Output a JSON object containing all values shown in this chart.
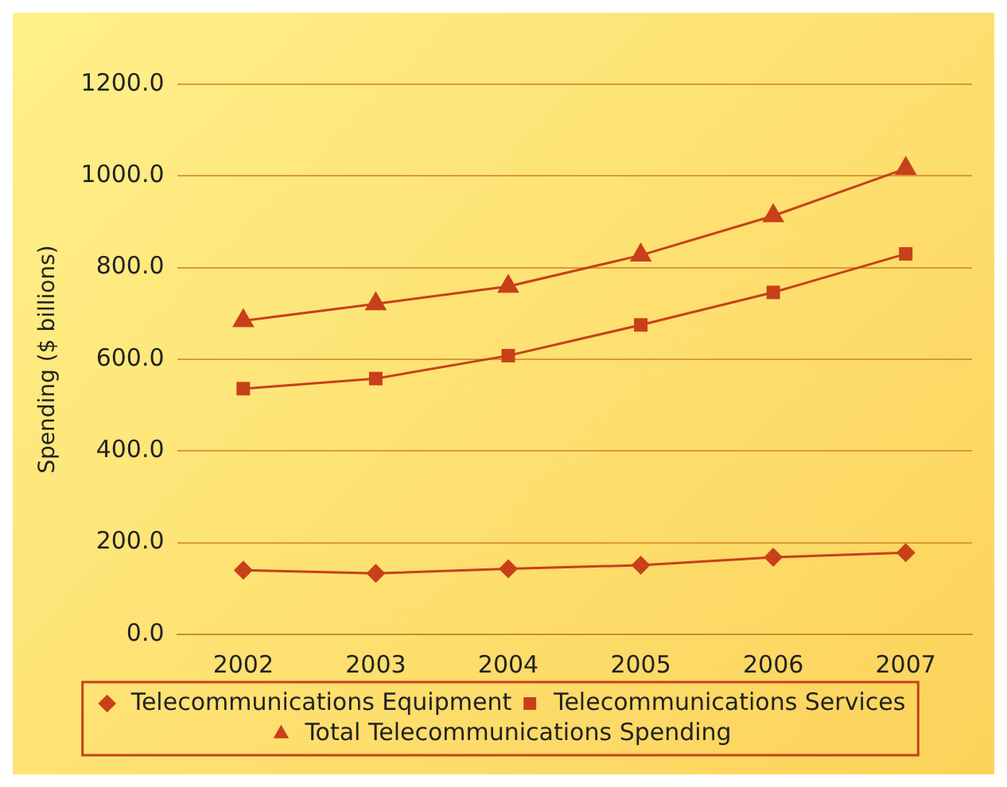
{
  "chart_data": {
    "type": "line",
    "ylabel": "Spending ($ billions)",
    "categories": [
      "2002",
      "2003",
      "2004",
      "2005",
      "2006",
      "2007"
    ],
    "series": [
      {
        "name": "Telecommunications Equipment",
        "color": "#c8401a",
        "marker": "diamond",
        "values": [
          140,
          133,
          143,
          151,
          168,
          178
        ]
      },
      {
        "name": "Telecommunications Services",
        "color": "#c8401a",
        "marker": "square",
        "values": [
          536,
          558,
          608,
          675,
          746,
          830
        ]
      },
      {
        "name": "Total Telecommunications Spending",
        "color": "#c8401a",
        "marker": "triangle",
        "values": [
          684,
          721,
          759,
          827,
          913,
          1016
        ]
      }
    ],
    "ylim": [
      0,
      1200
    ],
    "yticks": [
      {
        "value": 0,
        "label": "0.0"
      },
      {
        "value": 200,
        "label": "200.0"
      },
      {
        "value": 400,
        "label": "400.0"
      },
      {
        "value": 600,
        "label": "600.0"
      },
      {
        "value": 800,
        "label": "800.0"
      },
      {
        "value": 1000,
        "label": "1000.0"
      },
      {
        "value": 1200,
        "label": "1200.0"
      }
    ],
    "grid": "y",
    "legend": "bottom",
    "line_style": "solid"
  }
}
